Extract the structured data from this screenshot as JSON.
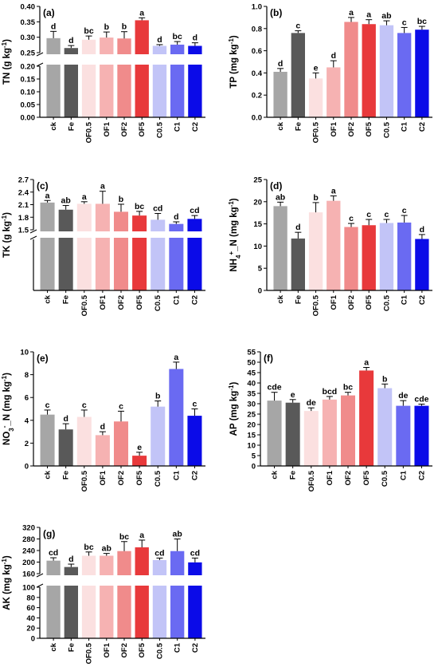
{
  "categories": [
    "ck",
    "Fe",
    "OF0.5",
    "OF1",
    "OF2",
    "OF5",
    "C0.5",
    "C1",
    "C2"
  ],
  "colors": [
    "#a6a6a6",
    "#595959",
    "#fbe0e0",
    "#f6b2b2",
    "#f08b8b",
    "#e8393b",
    "#c2c4f7",
    "#6a6af2",
    "#0b0be8"
  ],
  "chart_data": [
    {
      "type": "bar",
      "panel": "(a)",
      "ylabel": "TN (g kg",
      "ylabel_sup": "-1",
      "ylabel_end": ")",
      "categories": [
        "ck",
        "Fe",
        "OF0.5",
        "OF1",
        "OF2",
        "OF5",
        "C0.5",
        "C1",
        "C2"
      ],
      "values": [
        0.297,
        0.265,
        0.292,
        0.299,
        0.296,
        0.355,
        0.272,
        0.276,
        0.272
      ],
      "errors": [
        0.022,
        0.008,
        0.012,
        0.018,
        0.022,
        0.008,
        0.004,
        0.01,
        0.01
      ],
      "letters": [
        "d",
        "d",
        "bc",
        "b",
        "b",
        "a",
        "d",
        "bc",
        "d"
      ],
      "broken": true,
      "lower_range": [
        0,
        0.2
      ],
      "lower_ticks": [
        "0.00",
        "0.05",
        "0.10",
        "0.15",
        "0.20"
      ],
      "upper_range": [
        0.25,
        0.4
      ],
      "upper_ticks": [
        "0.25",
        "0.30",
        "0.35",
        "0.40"
      ]
    },
    {
      "type": "bar",
      "panel": "(b)",
      "ylabel": "TP (mg kg",
      "ylabel_sup": "-1",
      "ylabel_end": ")",
      "categories": [
        "ck",
        "Fe",
        "OF0.5",
        "OF1",
        "OF2",
        "OF5",
        "C0.5",
        "C1",
        "C2"
      ],
      "values": [
        0.41,
        0.76,
        0.35,
        0.45,
        0.86,
        0.84,
        0.83,
        0.76,
        0.79
      ],
      "errors": [
        0.03,
        0.02,
        0.05,
        0.06,
        0.04,
        0.04,
        0.04,
        0.05,
        0.03
      ],
      "letters": [
        "d",
        "c",
        "e",
        "d",
        "a",
        "a",
        "ab",
        "c",
        "bc"
      ],
      "ylim": [
        0,
        1.0
      ],
      "ticks": [
        "0.0",
        "0.2",
        "0.4",
        "0.6",
        "0.8",
        "1.0"
      ]
    },
    {
      "type": "bar",
      "panel": "(c)",
      "ylabel": "TK (g kg",
      "ylabel_sup": "-1",
      "ylabel_end": ")",
      "categories": [
        "ck",
        "Fe",
        "OF0.5",
        "OF1",
        "OF2",
        "OF5",
        "C0.5",
        "C1",
        "C2"
      ],
      "values": [
        2.15,
        1.98,
        2.12,
        2.12,
        1.93,
        1.84,
        1.74,
        1.64,
        1.76
      ],
      "errors": [
        0.05,
        0.1,
        0.05,
        0.3,
        0.18,
        0.1,
        0.15,
        0.05,
        0.08
      ],
      "letters": [
        "a",
        "ab",
        "a",
        "a",
        "b",
        "bc",
        "cd",
        "d",
        "cd"
      ],
      "broken": true,
      "upper_range": [
        1.5,
        2.7
      ],
      "upper_ticks": [
        "1.5",
        "1.8",
        "2.1",
        "2.4",
        "2.7"
      ]
    },
    {
      "type": "bar",
      "panel": "(d)",
      "ylabel": "NH",
      "ylabel_sub": "4",
      "ylabel_sup": "+",
      "ylabel_end": "_N (mg kg",
      "ylabel_sup2": "-1",
      "ylabel_end2": ")",
      "categories": [
        "ck",
        "Fe",
        "OF0.5",
        "OF1",
        "OF2",
        "OF5",
        "C0.5",
        "C1",
        "C2"
      ],
      "values": [
        19.0,
        11.7,
        17.6,
        20.2,
        14.3,
        14.7,
        15.2,
        15.3,
        11.6
      ],
      "errors": [
        0.9,
        1.4,
        2.2,
        1.1,
        0.8,
        1.3,
        0.8,
        1.6,
        1.0
      ],
      "letters": [
        "ab",
        "d",
        "b",
        "a",
        "c",
        "c",
        "c",
        "c",
        "d"
      ],
      "ylim": [
        0,
        25
      ],
      "ticks": [
        "0",
        "5",
        "10",
        "15",
        "20",
        "25"
      ]
    },
    {
      "type": "bar",
      "panel": "(e)",
      "ylabel": "NO",
      "ylabel_sub": "3",
      "ylabel_sup": "-",
      "ylabel_end": "_N (mg kg",
      "ylabel_sup2": "-1",
      "ylabel_end2": ")",
      "categories": [
        "ck",
        "Fe",
        "OF0.5",
        "OF1",
        "OF2",
        "OF5",
        "C0.5",
        "C1",
        "C2"
      ],
      "values": [
        4.5,
        3.2,
        4.3,
        2.7,
        3.9,
        0.9,
        5.2,
        8.5,
        4.4
      ],
      "errors": [
        0.4,
        0.5,
        0.6,
        0.3,
        0.9,
        0.3,
        0.5,
        0.6,
        0.6
      ],
      "letters": [
        "c",
        "d",
        "c",
        "d",
        "c",
        "e",
        "b",
        "a",
        "c"
      ],
      "ylim": [
        0,
        10
      ],
      "ticks": [
        "0",
        "2",
        "4",
        "6",
        "8",
        "10"
      ]
    },
    {
      "type": "bar",
      "panel": "(f)",
      "ylabel": "AP (mg kg",
      "ylabel_sup": "-1",
      "ylabel_end": ")",
      "categories": [
        "ck",
        "Fe",
        "OF0.5",
        "OF1",
        "OF2",
        "OF5",
        "C0.5",
        "C1",
        "C2"
      ],
      "values": [
        31.5,
        30.5,
        26.5,
        32.0,
        34.0,
        46.0,
        37.5,
        29.0,
        29.0
      ],
      "errors": [
        4.0,
        1.5,
        1.5,
        1.5,
        1.5,
        1.5,
        2.0,
        2.5,
        0.8
      ],
      "letters": [
        "cde",
        "e",
        "de",
        "bcd",
        "bc",
        "a",
        "b",
        "de",
        "cde"
      ],
      "ylim": [
        0,
        55
      ],
      "ticks": [
        "0",
        "5",
        "10",
        "15",
        "20",
        "25",
        "30",
        "35",
        "40",
        "45",
        "50",
        "55"
      ]
    },
    {
      "type": "bar",
      "panel": "(g)",
      "ylabel": "AK (mg kg",
      "ylabel_sup": "-1",
      "ylabel_end": ")",
      "categories": [
        "ck",
        "Fe",
        "OF0.5",
        "OF1",
        "OF2",
        "OF5",
        "C0.5",
        "C1",
        "C2"
      ],
      "values": [
        205,
        183,
        222,
        222,
        238,
        251,
        207,
        238,
        199
      ],
      "errors": [
        10,
        10,
        13,
        8,
        33,
        25,
        7,
        42,
        15
      ],
      "letters": [
        "cd",
        "d",
        "bc",
        "ab",
        "bc",
        "a",
        "cd",
        "ab",
        "cd"
      ],
      "broken": true,
      "lower_range": [
        0,
        100
      ],
      "lower_ticks": [
        "0",
        "20",
        "40",
        "60",
        "80",
        "100"
      ],
      "upper_range": [
        160,
        320
      ],
      "upper_ticks": [
        "160",
        "200",
        "240",
        "280",
        "320"
      ]
    }
  ]
}
